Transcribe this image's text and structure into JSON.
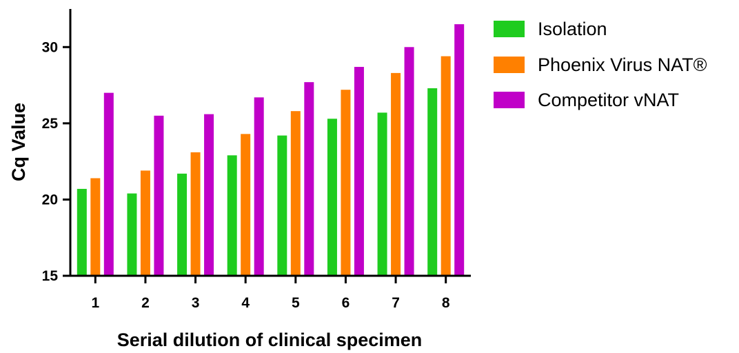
{
  "chart_data": {
    "type": "bar",
    "categories": [
      "1",
      "2",
      "3",
      "4",
      "5",
      "6",
      "7",
      "8"
    ],
    "series": [
      {
        "name": "Isolation",
        "color": "#1fcc1f",
        "values": [
          20.7,
          20.4,
          21.7,
          22.9,
          24.2,
          25.3,
          25.7,
          27.3
        ]
      },
      {
        "name": "Phoenix Virus NAT®",
        "color": "#ff8000",
        "values": [
          21.4,
          21.9,
          23.1,
          24.3,
          25.8,
          27.2,
          28.3,
          29.4
        ]
      },
      {
        "name": "Competitor vNAT",
        "color": "#c000c8",
        "values": [
          27.0,
          25.5,
          25.6,
          26.7,
          27.7,
          28.7,
          30.0,
          31.5
        ]
      }
    ],
    "xlabel": "Serial dilution of clinical specimen",
    "ylabel": "Cq Value",
    "ylim": [
      15,
      32.5
    ],
    "yticks": [
      "15",
      "20",
      "25",
      "30"
    ],
    "grid": false,
    "legend_position": "top-right"
  }
}
